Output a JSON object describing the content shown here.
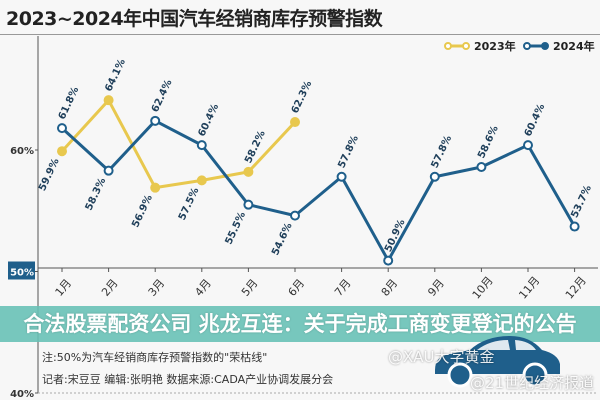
{
  "chart_data": {
    "type": "line",
    "title": "2023~2024年中国汽车经销商库存预警指数",
    "categories": [
      "1月",
      "2月",
      "3月",
      "4月",
      "5月",
      "6月",
      "7月",
      "8月",
      "9月",
      "10月",
      "11月",
      "12月"
    ],
    "ylim": [
      40,
      70
    ],
    "yticks": [
      "40%",
      "50%",
      "60%"
    ],
    "highlight_tick": "50%",
    "legend_position": "top-right",
    "grid": false,
    "series": [
      {
        "name": "2023年",
        "color": "#e8c84e",
        "values": [
          59.9,
          64.1,
          56.9,
          57.5,
          58.2,
          62.3,
          null,
          null,
          null,
          null,
          null,
          null
        ],
        "labels": [
          "59.9%",
          "64.1%",
          "56.9%",
          "57.5%",
          "58.2%",
          "62.3%"
        ]
      },
      {
        "name": "2024年",
        "color": "#1f5f8b",
        "values": [
          61.8,
          58.3,
          62.4,
          60.4,
          55.5,
          54.6,
          57.8,
          50.9,
          57.8,
          58.6,
          60.4,
          53.7
        ],
        "labels": [
          "61.8%",
          "58.3%",
          "62.4%",
          "60.4%",
          "55.5%",
          "54.6%",
          "57.8%",
          "50.9%",
          "57.8%",
          "58.6%",
          "60.4%",
          "53.7%"
        ]
      }
    ]
  },
  "banner": {
    "line1": "合法股票配资公司 兆龙互连：关于完成工商变更",
    "line2": "登记的公告"
  },
  "notes": {
    "note": "注:50%为汽车经销商库存预警指数的\"荣枯线\"",
    "credits": "记者:宋豆豆   编辑:张明艳   数据来源:CADA产业协调发展分会"
  },
  "watermarks": [
    "@XAU大字黄金",
    "@21世纪经济报道"
  ],
  "colors": {
    "banner": "#68c1b6",
    "car": "#1f5f8b"
  }
}
